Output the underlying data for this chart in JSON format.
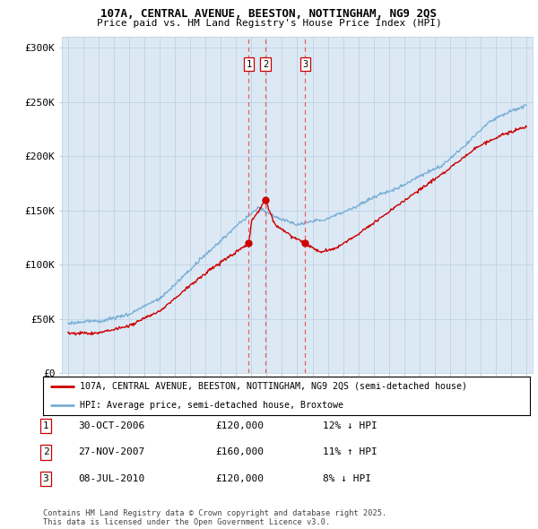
{
  "title1": "107A, CENTRAL AVENUE, BEESTON, NOTTINGHAM, NG9 2QS",
  "title2": "Price paid vs. HM Land Registry's House Price Index (HPI)",
  "ylabel_ticks": [
    "£0",
    "£50K",
    "£100K",
    "£150K",
    "£200K",
    "£250K",
    "£300K"
  ],
  "ytick_vals": [
    0,
    50000,
    100000,
    150000,
    200000,
    250000,
    300000
  ],
  "ylim": [
    0,
    310000
  ],
  "xlim_start": 1994.6,
  "xlim_end": 2025.4,
  "sale_dates": [
    2006.83,
    2007.92,
    2010.52
  ],
  "sale_prices": [
    120000,
    160000,
    120000
  ],
  "sale_labels": [
    "1",
    "2",
    "3"
  ],
  "legend_property": "107A, CENTRAL AVENUE, BEESTON, NOTTINGHAM, NG9 2QS (semi-detached house)",
  "legend_hpi": "HPI: Average price, semi-detached house, Broxtowe",
  "table_rows": [
    [
      "1",
      "30-OCT-2006",
      "£120,000",
      "12% ↓ HPI"
    ],
    [
      "2",
      "27-NOV-2007",
      "£160,000",
      "11% ↑ HPI"
    ],
    [
      "3",
      "08-JUL-2010",
      "£120,000",
      "8% ↓ HPI"
    ]
  ],
  "footer": "Contains HM Land Registry data © Crown copyright and database right 2025.\nThis data is licensed under the Open Government Licence v3.0.",
  "property_line_color": "#cc0000",
  "hpi_line_color": "#7aafd4",
  "vline_color": "#e86060",
  "chart_bg_color": "#dce9f5",
  "background_color": "#ffffff",
  "grid_color": "#b8cfe0"
}
